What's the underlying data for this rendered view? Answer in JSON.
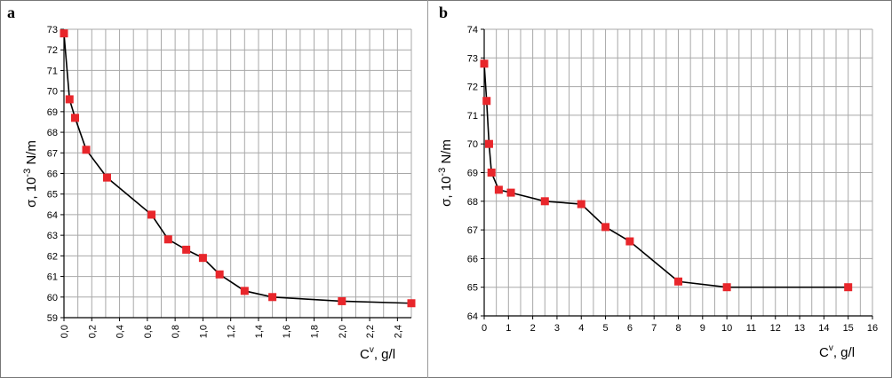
{
  "panels": [
    {
      "letter": "a"
    },
    {
      "letter": "b"
    }
  ],
  "chart_data": [
    {
      "type": "line",
      "panel": "a",
      "xlabel": "C",
      "xlabel_sup": "v",
      "xlabel_rest": ", g/l",
      "ylabel_main": "σ, 10",
      "ylabel_sup": "-3",
      "ylabel_rest": " N/m",
      "xlim": [
        0,
        2.5
      ],
      "ylim": [
        59,
        73
      ],
      "xticks": [
        "0,0",
        "0,2",
        "0,4",
        "0,6",
        "0,8",
        "1,0",
        "1,2",
        "1,4",
        "1,6",
        "1,8",
        "2,0",
        "2,2",
        "2,4"
      ],
      "xtick_values": [
        0,
        0.2,
        0.4,
        0.6,
        0.8,
        1.0,
        1.2,
        1.4,
        1.6,
        1.8,
        2.0,
        2.2,
        2.4
      ],
      "x_grid_step": 0.1,
      "yticks": [
        "59",
        "60",
        "61",
        "62",
        "63",
        "64",
        "65",
        "66",
        "67",
        "68",
        "69",
        "70",
        "71",
        "72",
        "73"
      ],
      "ytick_values": [
        59,
        60,
        61,
        62,
        63,
        64,
        65,
        66,
        67,
        68,
        69,
        70,
        71,
        72,
        73
      ],
      "grid": true,
      "marker_color": "#e8262b",
      "line_color": "#000000",
      "series": [
        {
          "x": [
            0.0,
            0.04,
            0.08,
            0.16,
            0.31,
            0.63,
            0.75,
            0.88,
            1.0,
            1.12,
            1.3,
            1.5,
            2.0,
            2.5
          ],
          "y": [
            72.8,
            69.6,
            68.7,
            67.15,
            65.8,
            64.0,
            62.8,
            62.3,
            61.9,
            61.1,
            60.3,
            60.0,
            59.8,
            59.7
          ]
        }
      ]
    },
    {
      "type": "line",
      "panel": "b",
      "xlabel": "C",
      "xlabel_sup": "v",
      "xlabel_rest": ", g/l",
      "ylabel_main": "σ, 10",
      "ylabel_sup": "-3",
      "ylabel_rest": " N/m",
      "xlim": [
        0,
        16
      ],
      "ylim": [
        64,
        74
      ],
      "xticks": [
        "0",
        "1",
        "2",
        "3",
        "4",
        "5",
        "6",
        "7",
        "8",
        "9",
        "10",
        "11",
        "12",
        "13",
        "14",
        "15",
        "16"
      ],
      "xtick_values": [
        0,
        1,
        2,
        3,
        4,
        5,
        6,
        7,
        8,
        9,
        10,
        11,
        12,
        13,
        14,
        15,
        16
      ],
      "x_grid_step": 0.5,
      "yticks": [
        "64",
        "65",
        "66",
        "67",
        "68",
        "69",
        "70",
        "71",
        "72",
        "73",
        "74"
      ],
      "ytick_values": [
        64,
        65,
        66,
        67,
        68,
        69,
        70,
        71,
        72,
        73,
        74
      ],
      "grid": true,
      "marker_color": "#e8262b",
      "line_color": "#000000",
      "series": [
        {
          "x": [
            0.0,
            0.1,
            0.2,
            0.3,
            0.6,
            1.1,
            2.5,
            4.0,
            5.0,
            6.0,
            8.0,
            10.0,
            15.0
          ],
          "y": [
            72.8,
            71.5,
            70.0,
            69.0,
            68.4,
            68.3,
            68.0,
            67.9,
            67.1,
            66.6,
            65.2,
            65.0,
            65.0
          ]
        }
      ]
    }
  ]
}
